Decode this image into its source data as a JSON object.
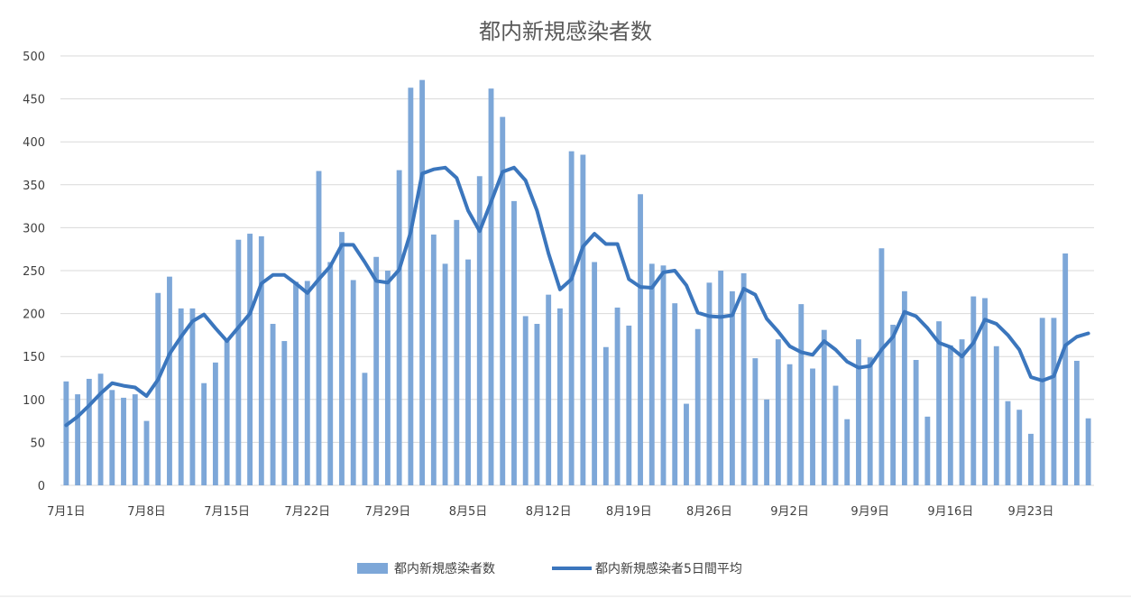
{
  "chart_data": {
    "type": "bar",
    "title": "都内新規感染者数",
    "xlabel": "",
    "ylabel": "",
    "ylim": [
      0,
      500
    ],
    "yticks": [
      0,
      50,
      100,
      150,
      200,
      250,
      300,
      350,
      400,
      450,
      500
    ],
    "grid": true,
    "legend_position": "bottom",
    "colors": {
      "bar": "#7da7d8",
      "line": "#3b76bd"
    },
    "x_tick_labels": [
      {
        "index": 0,
        "label": "7月1日"
      },
      {
        "index": 7,
        "label": "7月8日"
      },
      {
        "index": 14,
        "label": "7月15日"
      },
      {
        "index": 21,
        "label": "7月22日"
      },
      {
        "index": 28,
        "label": "7月29日"
      },
      {
        "index": 35,
        "label": "8月5日"
      },
      {
        "index": 42,
        "label": "8月12日"
      },
      {
        "index": 49,
        "label": "8月19日"
      },
      {
        "index": 56,
        "label": "8月26日"
      },
      {
        "index": 63,
        "label": "9月2日"
      },
      {
        "index": 70,
        "label": "9月9日"
      },
      {
        "index": 77,
        "label": "9月16日"
      },
      {
        "index": 84,
        "label": "9月23日"
      }
    ],
    "series": [
      {
        "name": "都内新規感染者数",
        "type": "bar",
        "values": [
          121,
          106,
          124,
          130,
          111,
          102,
          106,
          75,
          224,
          243,
          206,
          206,
          119,
          143,
          168,
          286,
          293,
          290,
          188,
          168,
          237,
          238,
          366,
          260,
          295,
          239,
          131,
          266,
          250,
          367,
          463,
          472,
          292,
          258,
          309,
          263,
          360,
          462,
          429,
          331,
          197,
          188,
          222,
          206,
          389,
          385,
          260,
          161,
          207,
          186,
          339,
          258,
          256,
          212,
          95,
          182,
          236,
          250,
          226,
          247,
          148,
          100,
          170,
          141,
          211,
          136,
          181,
          116,
          77,
          170,
          149,
          276,
          187,
          226,
          146,
          80,
          191,
          163,
          170,
          220,
          218,
          162,
          98,
          88,
          60,
          195,
          195,
          270,
          145,
          78
        ]
      },
      {
        "name": "都内新規感染者5日間平均",
        "type": "line",
        "values": [
          70,
          80,
          93,
          107,
          119,
          116,
          114,
          104,
          123,
          153,
          173,
          191,
          199,
          183,
          168,
          184,
          200,
          235,
          245,
          245,
          235,
          224,
          240,
          255,
          280,
          280,
          260,
          238,
          236,
          251,
          295,
          363,
          368,
          370,
          358,
          320,
          296,
          330,
          365,
          370,
          355,
          320,
          270,
          228,
          240,
          278,
          293,
          281,
          281,
          240,
          231,
          230,
          248,
          250,
          233,
          201,
          197,
          196,
          198,
          229,
          222,
          194,
          179,
          162,
          155,
          152,
          168,
          158,
          144,
          137,
          139,
          158,
          173,
          202,
          197,
          183,
          166,
          161,
          150,
          166,
          193,
          188,
          175,
          158,
          126,
          122,
          127,
          163,
          173,
          177
        ]
      }
    ]
  }
}
